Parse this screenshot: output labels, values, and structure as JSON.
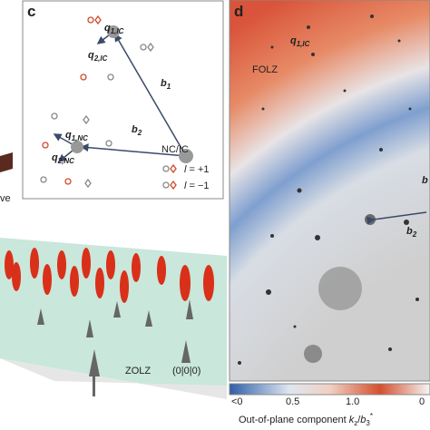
{
  "panel_c": {
    "label": "c",
    "q1_ic": {
      "main": "q",
      "sub": "1,IC"
    },
    "q2_ic": {
      "main": "q",
      "sub": "2,IC"
    },
    "b1": {
      "main": "b",
      "sub": "1"
    },
    "b2": {
      "main": "b",
      "sub": "2"
    },
    "q1_nc": {
      "main": "q",
      "sub": "1,NC"
    },
    "q2_nc": {
      "main": "q",
      "sub": "2,NC"
    },
    "legend_title": "NC/IC",
    "legend": [
      {
        "symbol": "l",
        "text": "= +1"
      },
      {
        "symbol": "l",
        "text": "= −1"
      }
    ]
  },
  "panel_b_fragment": {
    "text": "ve"
  },
  "panel_lattice": {
    "zolz": "ZOLZ",
    "index": "(0|0|0)"
  },
  "panel_d": {
    "label": "d",
    "q1_ic": {
      "main": "q",
      "sub": "1,IC"
    },
    "folz": "FOLZ",
    "b2": {
      "main": "b",
      "sub": "2"
    },
    "b_partial": "b",
    "colorbar": {
      "ticks": [
        "<0",
        "0.5",
        "1.0",
        "0"
      ],
      "title": "Out-of-plane component",
      "title_math": {
        "k": "k",
        "k_sub": "z",
        "slash": "/",
        "b": "b",
        "b_sub": "3",
        "b_sup": "*"
      }
    }
  }
}
